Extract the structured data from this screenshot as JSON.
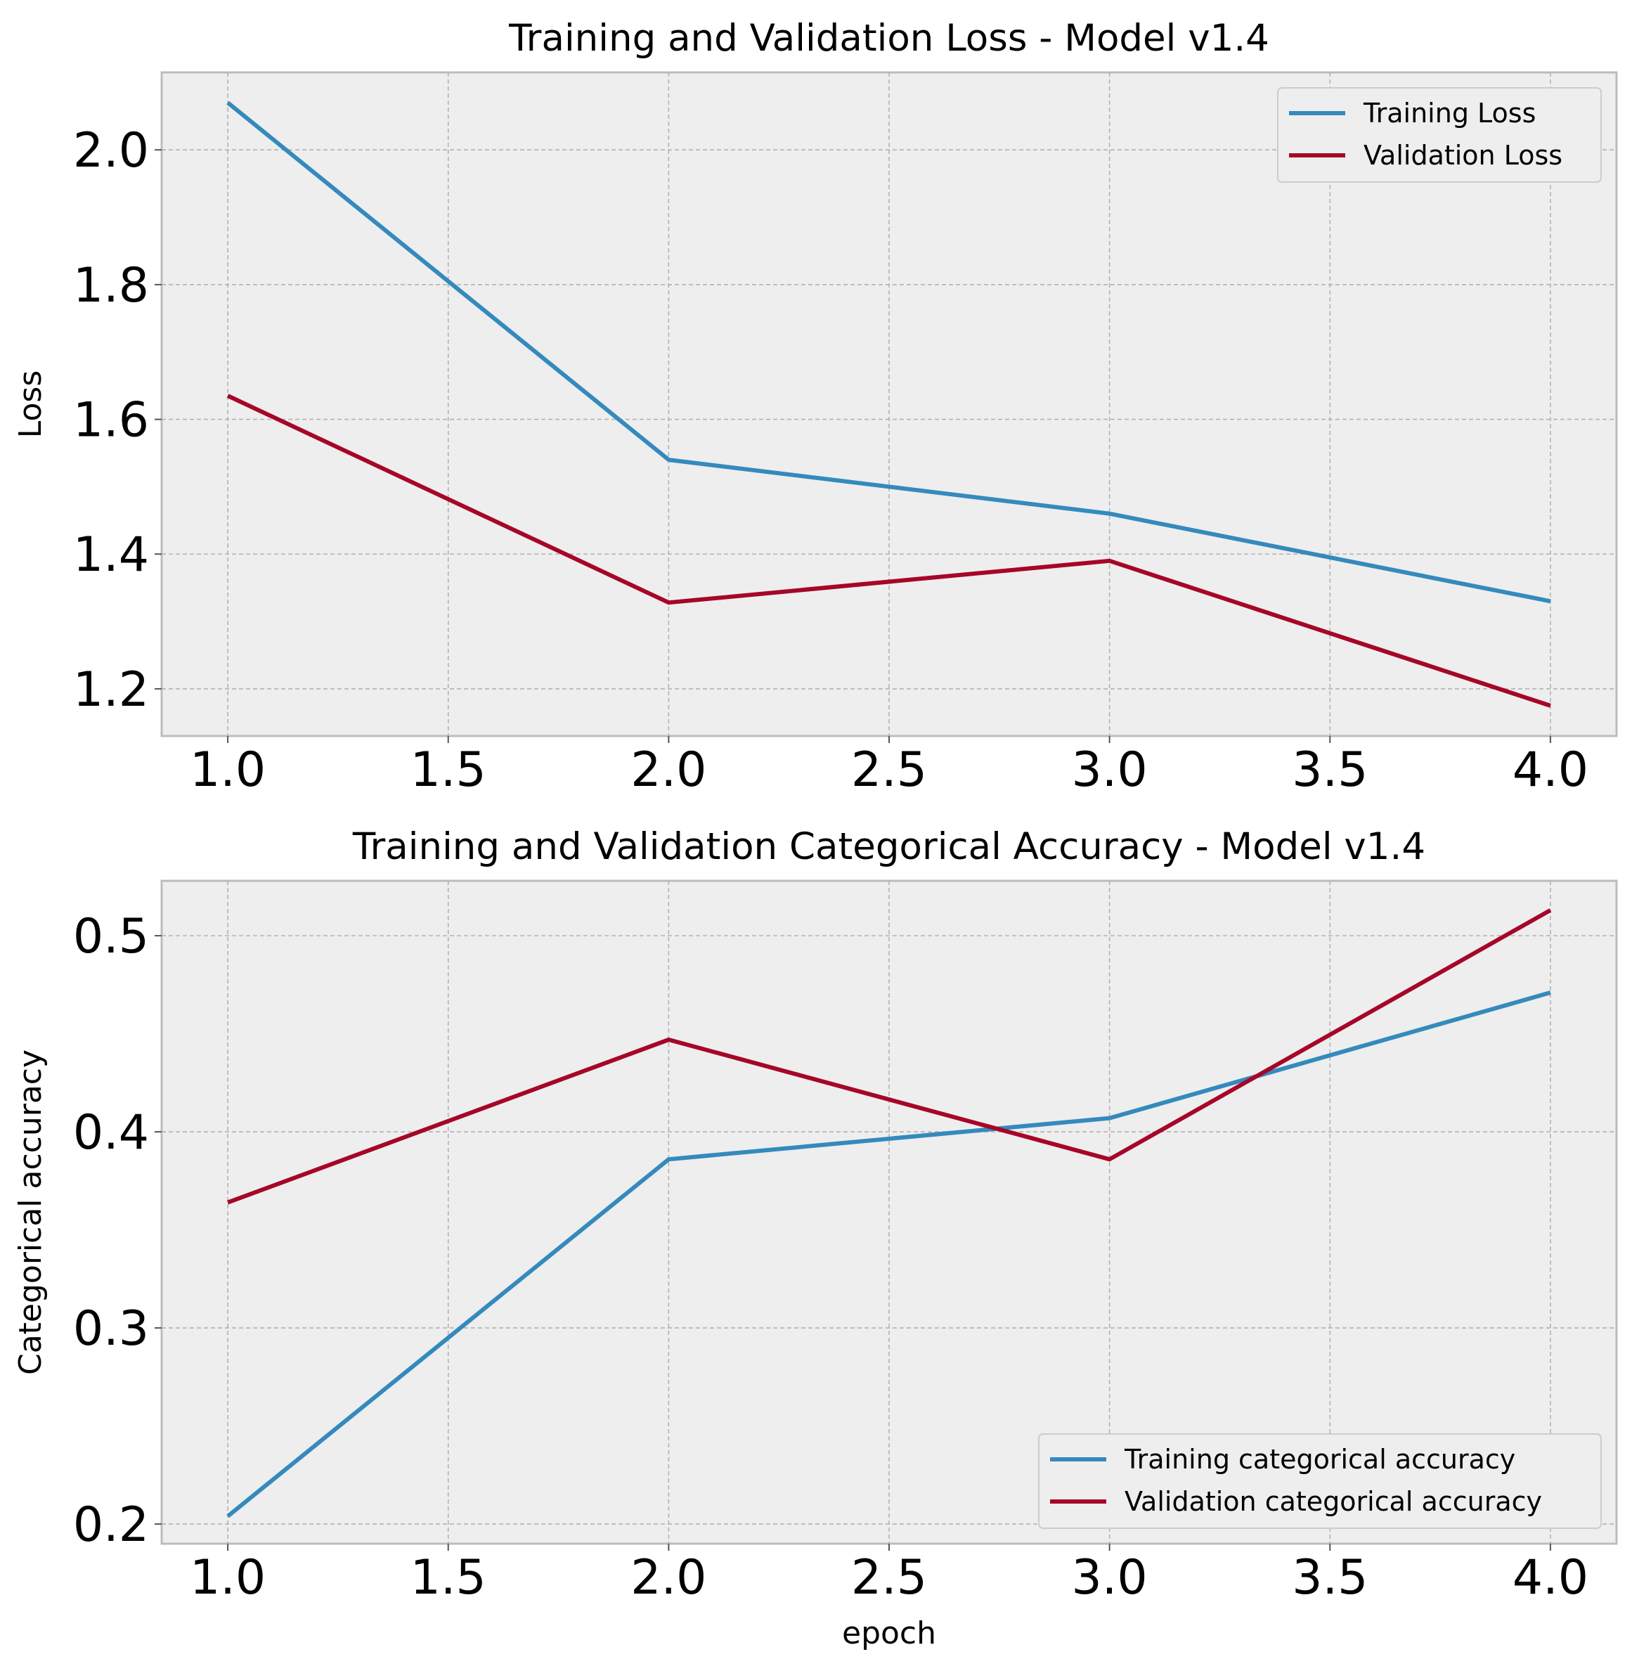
{
  "chart_data": [
    {
      "type": "line",
      "title": "Training and Validation Loss - Model v1.4",
      "xlabel": "",
      "ylabel": "Loss",
      "x": [
        1,
        2,
        3,
        4
      ],
      "xlim": [
        0.85,
        4.15
      ],
      "ylim": [
        1.13,
        2.115
      ],
      "xticks": [
        1.0,
        1.5,
        2.0,
        2.5,
        3.0,
        3.5,
        4.0
      ],
      "xtick_labels": [
        "1.0",
        "1.5",
        "2.0",
        "2.5",
        "3.0",
        "3.5",
        "4.0"
      ],
      "yticks": [
        1.2,
        1.4,
        1.6,
        1.8,
        2.0
      ],
      "ytick_labels": [
        "1.2",
        "1.4",
        "1.6",
        "1.8",
        "2.0"
      ],
      "grid": true,
      "legend_position": "top-right",
      "series": [
        {
          "name": "Training Loss",
          "color": "#348abd",
          "values": [
            2.07,
            1.54,
            1.46,
            1.33
          ]
        },
        {
          "name": "Validation Loss",
          "color": "#a60628",
          "values": [
            1.635,
            1.328,
            1.39,
            1.175
          ]
        }
      ]
    },
    {
      "type": "line",
      "title": "Training and Validation Categorical Accuracy - Model v1.4",
      "xlabel": "epoch",
      "ylabel": "Categorical accuracy",
      "x": [
        1,
        2,
        3,
        4
      ],
      "xlim": [
        0.85,
        4.15
      ],
      "ylim": [
        0.19,
        0.528
      ],
      "xticks": [
        1.0,
        1.5,
        2.0,
        2.5,
        3.0,
        3.5,
        4.0
      ],
      "xtick_labels": [
        "1.0",
        "1.5",
        "2.0",
        "2.5",
        "3.0",
        "3.5",
        "4.0"
      ],
      "yticks": [
        0.2,
        0.3,
        0.4,
        0.5
      ],
      "ytick_labels": [
        "0.2",
        "0.3",
        "0.4",
        "0.5"
      ],
      "grid": true,
      "legend_position": "bottom-right",
      "series": [
        {
          "name": "Training categorical accuracy",
          "color": "#348abd",
          "values": [
            0.204,
            0.386,
            0.407,
            0.471
          ]
        },
        {
          "name": "Validation categorical accuracy",
          "color": "#a60628",
          "values": [
            0.364,
            0.447,
            0.386,
            0.513
          ]
        }
      ]
    }
  ]
}
